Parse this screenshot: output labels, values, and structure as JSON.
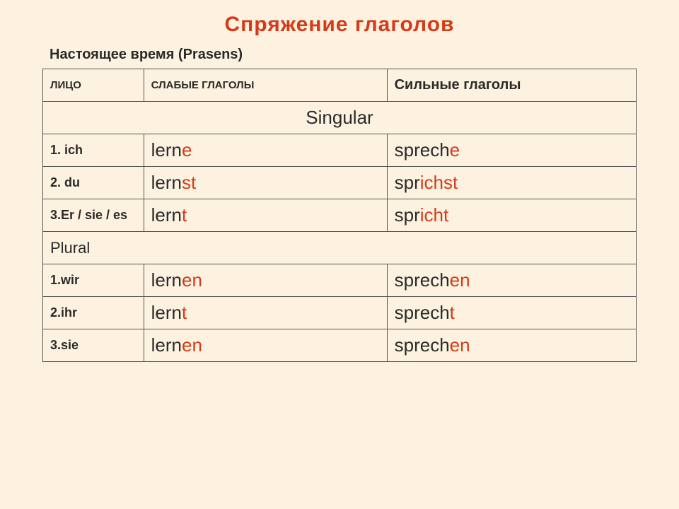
{
  "title": "Спряжение  глаголов",
  "subtitle": "Настоящее время (Prasens)",
  "headers": {
    "person": "ЛИЦО",
    "weak": "СЛАБЫЕ ГЛАГОЛЫ",
    "strong": "Сильные глаголы"
  },
  "sections": {
    "singular": "Singular",
    "plural": "Plural"
  },
  "rows": {
    "s1": {
      "person": "1. ich",
      "weak_stem": "lern",
      "weak_end": "e",
      "strong_pre": "sprech",
      "strong_mid": "",
      "strong_end": "e"
    },
    "s2": {
      "person": "2. du",
      "weak_stem": "lern",
      "weak_end": "st",
      "strong_pre": "spr",
      "strong_mid": "ich",
      "strong_end": "st"
    },
    "s3": {
      "person": "3.Er / sie / es",
      "weak_stem": "lern",
      "weak_end": "t",
      "strong_pre": "spr",
      "strong_mid": "ich",
      "strong_end": "t"
    },
    "p1": {
      "person": "1.wir",
      "weak_stem": "lern",
      "weak_end": "en",
      "strong_pre": "sprech",
      "strong_mid": "",
      "strong_end": "en"
    },
    "p2": {
      "person": "2.ihr",
      "weak_stem": "lern",
      "weak_end": "t",
      "strong_pre": "sprech",
      "strong_mid": "",
      "strong_end": "t"
    },
    "p3": {
      "person": "3.sie",
      "weak_stem": "lern",
      "weak_end": "en",
      "strong_pre": "sprech",
      "strong_mid": "",
      "strong_end": "en"
    }
  },
  "colors": {
    "background": "#fdf2df",
    "title": "#d63a1a",
    "highlight": "#d63a1a",
    "text": "#2a2a2a",
    "border": "#555555"
  }
}
